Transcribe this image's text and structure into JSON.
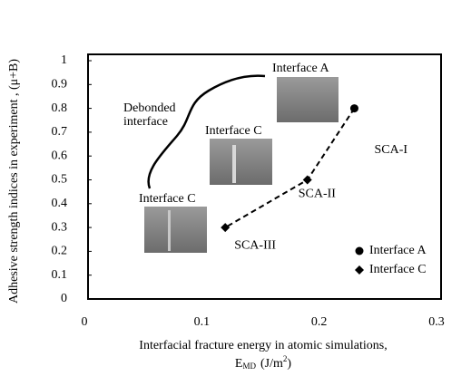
{
  "chart_data": {
    "type": "scatter",
    "ylabel": "Adhesive strength indices in experiment , (μ+B)",
    "xlabel": "Interfacial fracture energy in atomic simulations,",
    "xlabel_unit": {
      "symbol": "E",
      "subscript": "MD",
      "unit": "(J/m",
      "superscript": "2",
      "close": ")"
    },
    "xlim": [
      0,
      0.3
    ],
    "xticks": [
      0,
      0.1,
      0.2,
      0.3
    ],
    "ylim": [
      0,
      1
    ],
    "yticks": [
      0,
      0.1,
      0.2,
      0.3,
      0.4,
      0.5,
      0.6,
      0.7,
      0.8,
      0.9,
      1
    ],
    "grid": false,
    "legend": "lower right",
    "series": [
      {
        "name": "Interface A",
        "color": "#000000",
        "marker": "circle",
        "x": [
          0.23
        ],
        "values": [
          0.8
        ],
        "point_labels": [
          "SCA-I"
        ]
      },
      {
        "name": "Interface C",
        "color": "#000000",
        "marker": "diamond",
        "x": [
          0.19,
          0.12
        ],
        "values": [
          0.5,
          0.3
        ],
        "point_labels": [
          "SCA-II",
          "SCA-III"
        ]
      }
    ],
    "annotations": [
      "Interface A",
      "Interface C",
      "Interface C",
      "Debonded",
      "interface"
    ]
  }
}
